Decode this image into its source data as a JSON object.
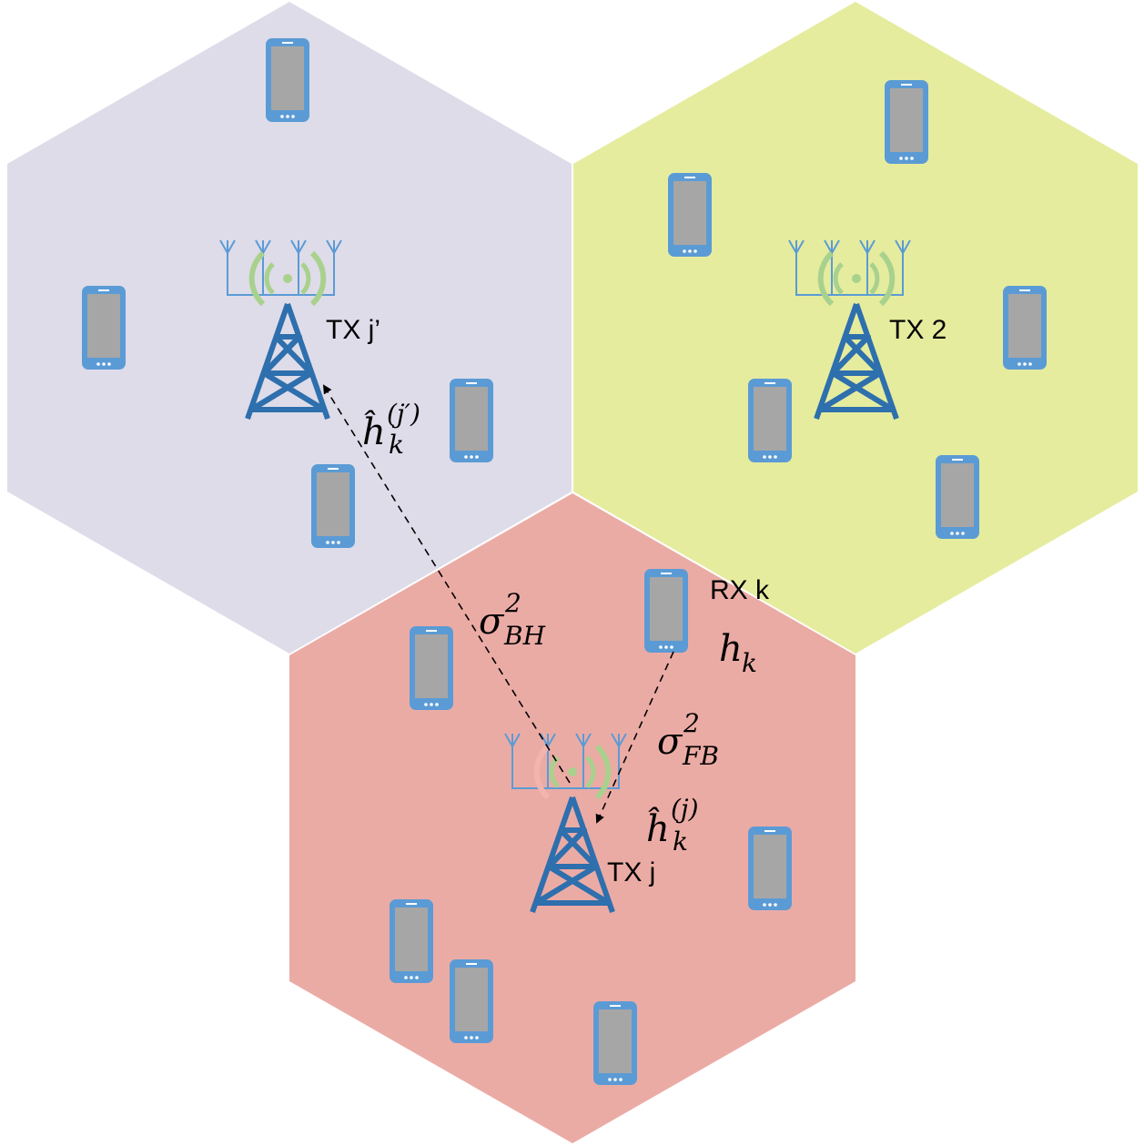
{
  "colors": {
    "cell_left": "#dedce9",
    "cell_right": "#e5ec9e",
    "cell_bottom": "#ebaba5",
    "phone_body": "#5b9bd5",
    "phone_screen": "#a6a6a6",
    "tower": "#2e6fad",
    "antenna": "#5b9bd5",
    "wave_green": "#a9d18e",
    "wave_red": "#f4b4ae"
  },
  "icons": {
    "phone": "mobile-phone-icon",
    "tower": "cell-tower-icon",
    "antenna": "antenna-array-icon"
  },
  "labels": {
    "tx_left": "TX j’",
    "tx_right": "TX 2",
    "tx_bottom": "TX j",
    "rx": "RX k"
  },
  "math": {
    "h_hat_jprime": {
      "base": "ĥ",
      "sub": "k",
      "sup": "(j′)"
    },
    "h_hat_j": {
      "base": "ĥ",
      "sub": "k",
      "sup": "(j)"
    },
    "h_k": {
      "base": "h",
      "sub": "k"
    },
    "sigma_bh": {
      "base": "σ",
      "sub": "BH",
      "sup": "2"
    },
    "sigma_fb": {
      "base": "σ",
      "sub": "FB",
      "sup": "2"
    }
  }
}
